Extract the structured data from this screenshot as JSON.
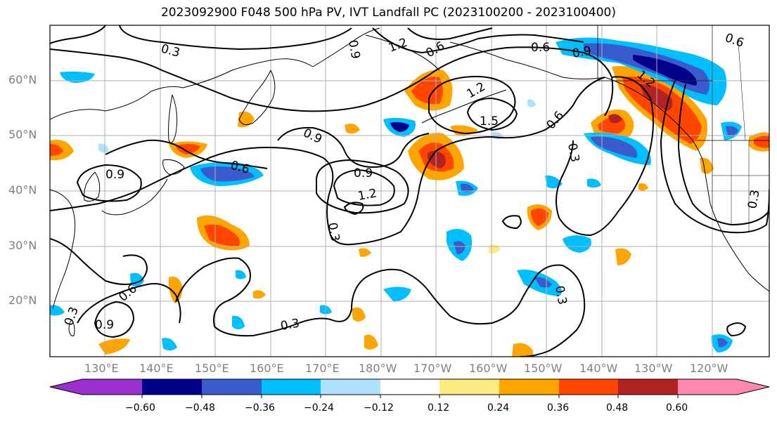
{
  "title": "2023092900 F048 500 hPa PV, IVT Landfall PC (2023100200 - 2023100400)",
  "lat_labels": [
    "60°N",
    "50°N",
    "40°N",
    "30°N",
    "20°N"
  ],
  "lon_labels": [
    "130°E",
    "140°E",
    "150°E",
    "160°E",
    "170°E",
    "180°W",
    "170°W",
    "160°W",
    "150°W",
    "140°W",
    "130°W",
    "120°W"
  ],
  "colorbar": {
    "ticks": [
      "−0.60",
      "−0.48",
      "−0.36",
      "−0.24",
      "−0.12",
      "0.12",
      "0.24",
      "0.36",
      "0.48",
      "0.60"
    ],
    "colors": [
      "#9b30d0",
      "#00008b",
      "#3a5bcc",
      "#00bfff",
      "#b0e2ff",
      "#ffffff",
      "#ffea80",
      "#ffa500",
      "#ff4500",
      "#b22222",
      "#ff88b0"
    ]
  },
  "contour_labels": [
    "0.3",
    "0.6",
    "0.9",
    "1.2",
    "1.5",
    "0.9",
    "0.6",
    "0.9",
    "0.9",
    "1.2",
    "0.3",
    "0.6",
    "0.3",
    "0.9",
    "0.6",
    "0.3",
    "0.3",
    "1.2",
    "0.6",
    "0.9",
    "0.6",
    "1.2",
    "0.3",
    "0.3"
  ],
  "colors": {
    "land": "#000000",
    "grid": "#b0b0b0",
    "contour": "#000000"
  }
}
